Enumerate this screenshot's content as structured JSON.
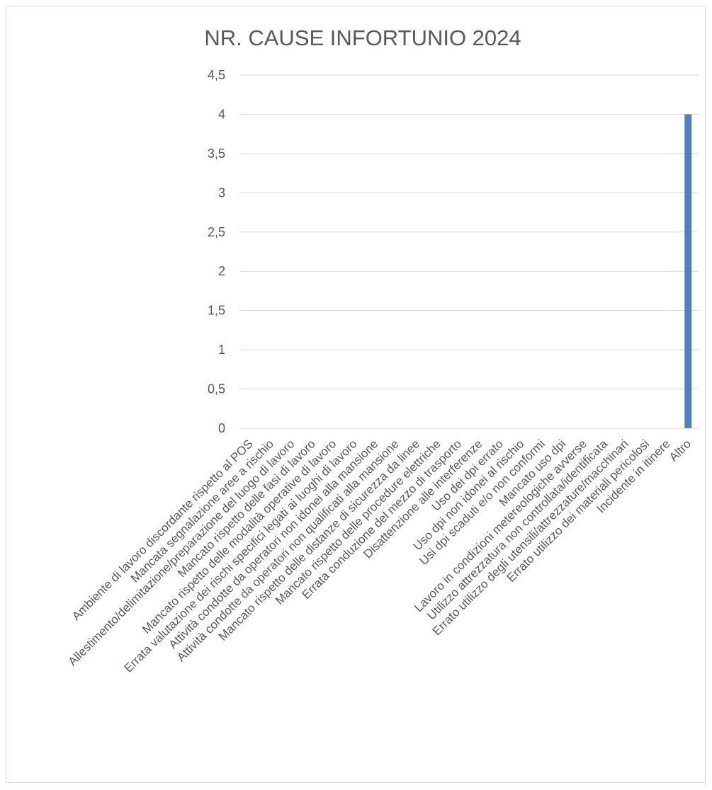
{
  "chart_data": {
    "type": "bar",
    "title": "NR. CAUSE INFORTUNIO 2024",
    "xlabel": "",
    "ylabel": "",
    "ylim": [
      0,
      4.5
    ],
    "yticks": [
      "0",
      "0,5",
      "1",
      "1,5",
      "2",
      "2,5",
      "3",
      "3,5",
      "4",
      "4,5"
    ],
    "grid": true,
    "legend": "none",
    "bar_color": "#4f81bd",
    "categories": [
      "Ambiente di lavoro discordante rispetto al POS",
      "Mancata segnalazione aree a rischio",
      "Allestimento/delimitazione/preparazione del luogo di lavoro",
      "Mancato rispetto delle fasi di lavoro",
      "Mancato rispetto delle modalità operative di lavoro",
      "Errata valutazione dei rischi specifici legati ai luoghi di lavoro",
      "Attività condotte da operatori non idonei alla mansione",
      "Attività condotte da operatori non qualificati alla mansione",
      "Mancato rispetto delle distanze di sicurezza da linee",
      "Mancato rispetto delle procedure elettriche",
      "Errata conduzione del mezzo di trasporto",
      "Disattenzione alle interferenze",
      "Uso dei dpi errato",
      "Uso dpi non idonei al rischio",
      "Usi dpi scaduti e/o non conformi",
      "Mancato uso dpi",
      "Lavoro in condizioni metereologiche avverse",
      "Utilizzo attrezzatura non controllata/identificata",
      "Errato utilizzo degli utensili/attrezzature/macchinari",
      "Errato utilizzo dei materiali pericolosi",
      "Incidente in itinere",
      "Altro"
    ],
    "values": [
      0,
      0,
      0,
      0,
      0,
      0,
      0,
      0,
      0,
      0,
      0,
      0,
      0,
      0,
      0,
      0,
      0,
      0,
      0,
      0,
      0,
      4
    ]
  }
}
